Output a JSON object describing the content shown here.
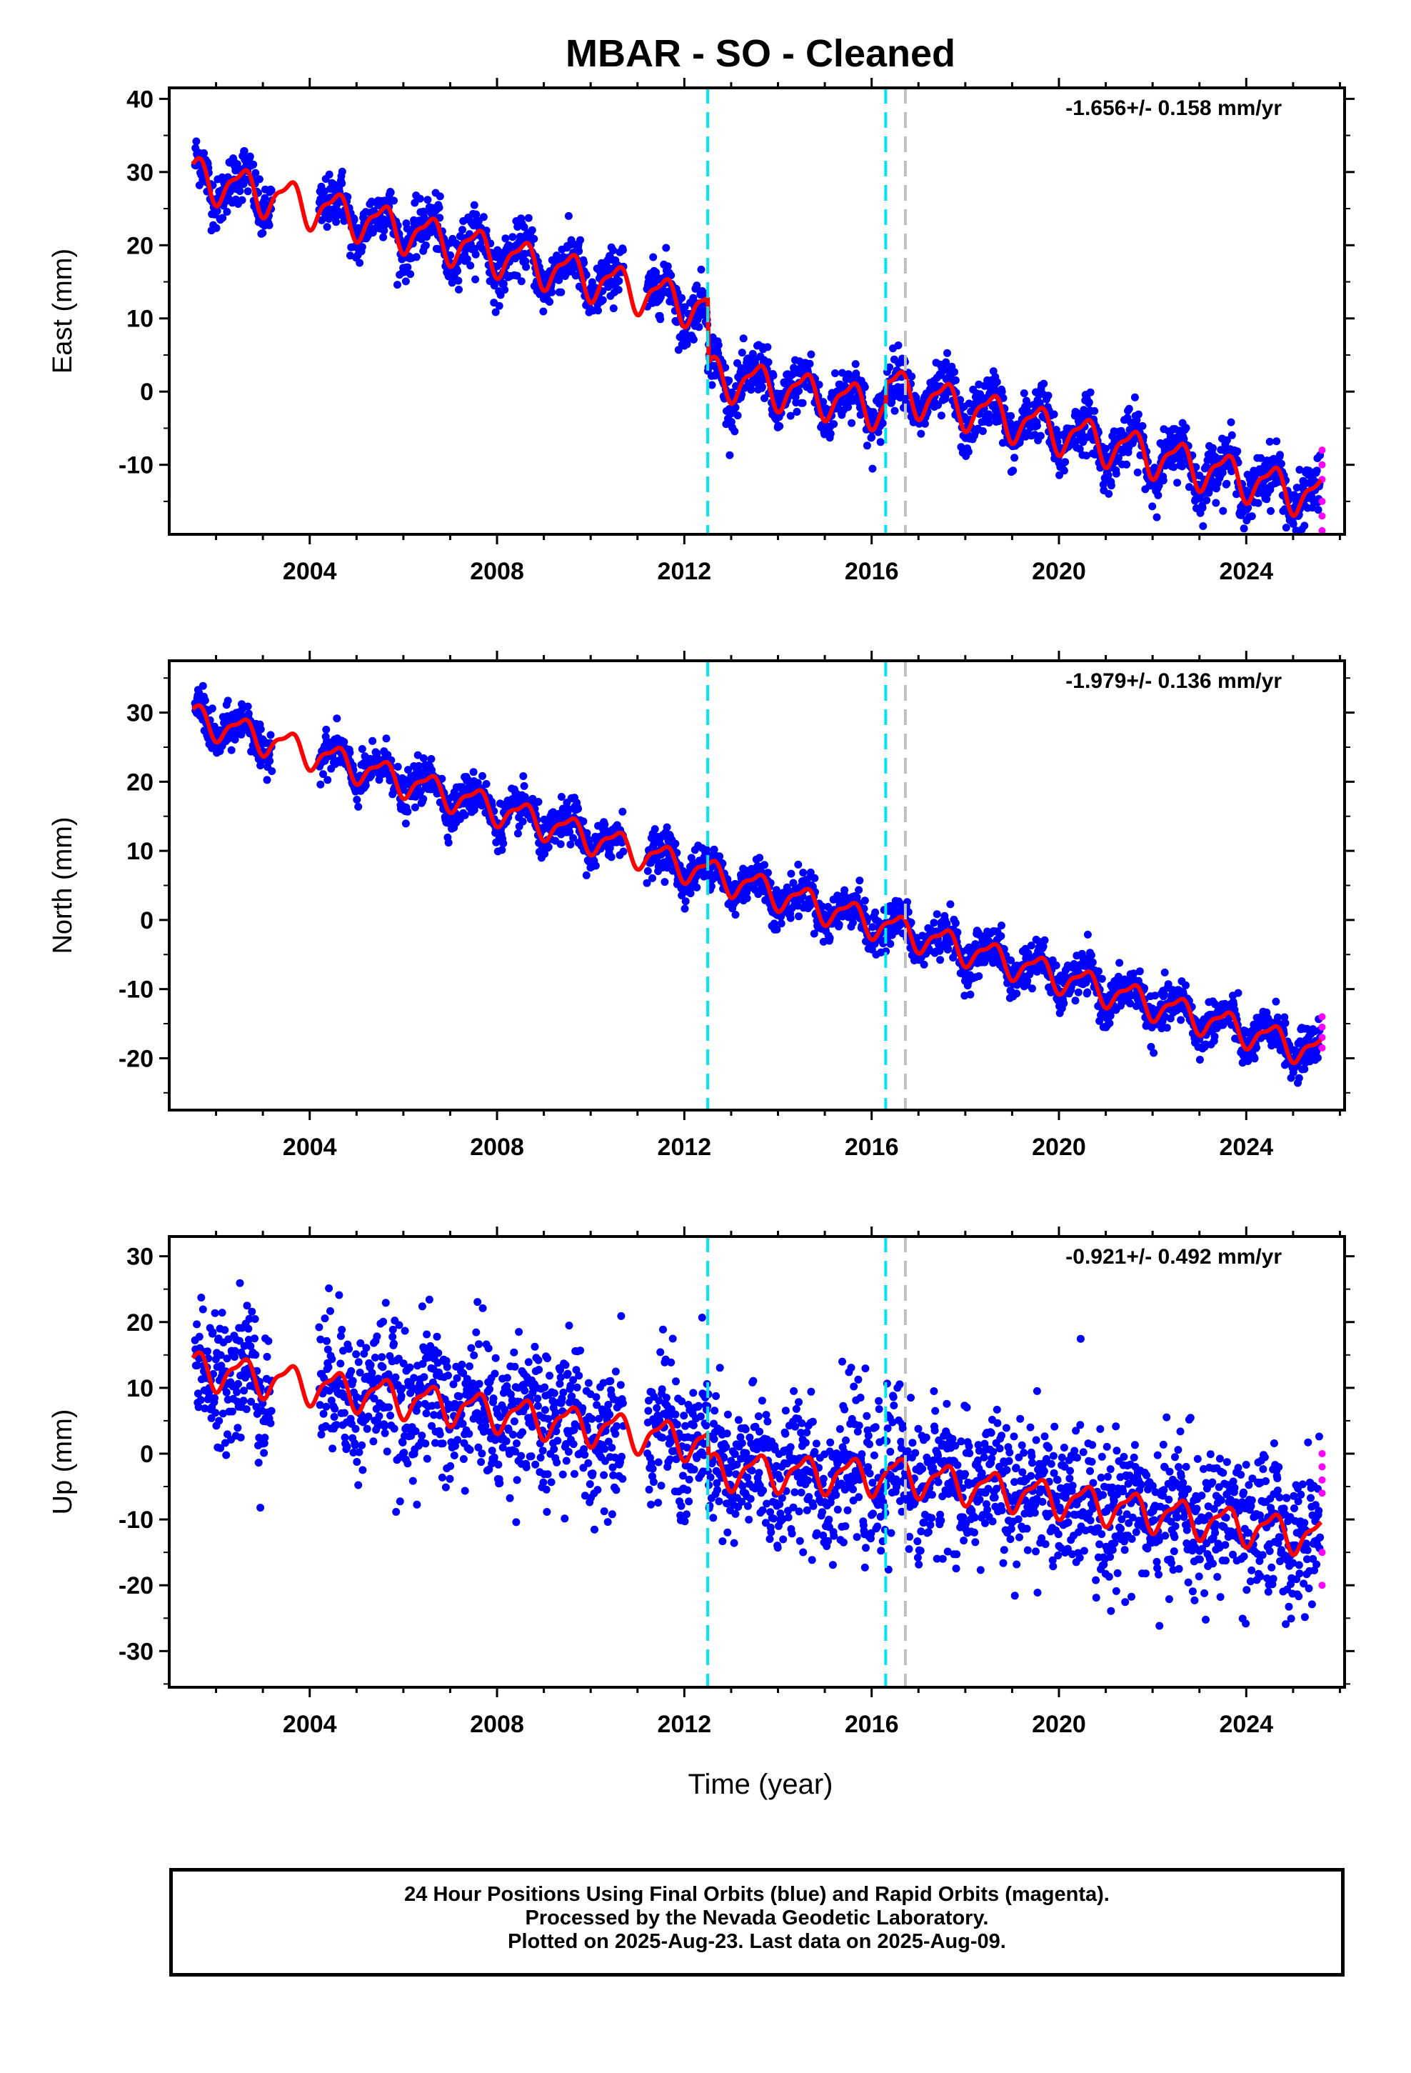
{
  "title": "MBAR  - SO - Cleaned",
  "xlabel": "Time (year)",
  "footer": [
    "24 Hour Positions Using Final Orbits (blue) and Rapid Orbits (magenta).",
    "Processed by the Nevada Geodetic Laboratory.",
    "Plotted on 2025-Aug-23. Last data on 2025-Aug-09."
  ],
  "colors": {
    "final_orbits": "#0000ff",
    "rapid_orbits": "#ff00ff",
    "model": "#ff0000",
    "equipment_change": "#00e5ee",
    "other_event": "#c0c0c0"
  },
  "chart_data": [
    {
      "type": "scatter",
      "ylabel": "East (mm)",
      "rate": "-1.656+/- 0.158 mm/yr",
      "xlim": [
        2001.0,
        2026.1
      ],
      "ylim": [
        -19.5,
        41.5
      ],
      "xticks": [
        2004,
        2008,
        2012,
        2016,
        2020,
        2024
      ],
      "yticks": [
        -10,
        0,
        10,
        20,
        30,
        40
      ],
      "vlines": [
        {
          "x": 2012.5,
          "color": "cyan"
        },
        {
          "x": 2016.3,
          "color": "cyan"
        },
        {
          "x": 2016.72,
          "color": "gray"
        }
      ],
      "model": {
        "segments": [
          {
            "x0": 2001.5,
            "x1": 2012.5,
            "y0": 29.5,
            "y1": 11.3
          },
          {
            "x0": 2012.5,
            "x1": 2016.3,
            "y0": 2.3,
            "y1": -2.3
          },
          {
            "x0": 2016.3,
            "x1": 2025.6,
            "y0": 0.6,
            "y1": -14.6
          }
        ],
        "amplitude": 2.6
      },
      "gaps": [
        [
          2003.2,
          2004.2
        ],
        [
          2010.7,
          2011.2
        ]
      ],
      "scatter": 1.8,
      "rapid": {
        "x": 2025.62,
        "values": [
          -8,
          -10,
          -12,
          -15,
          -17,
          -19
        ]
      }
    },
    {
      "type": "scatter",
      "ylabel": "North (mm)",
      "rate": "-1.979+/- 0.136 mm/yr",
      "xlim": [
        2001.0,
        2026.1
      ],
      "ylim": [
        -27.5,
        37.5
      ],
      "xticks": [
        2004,
        2008,
        2012,
        2016,
        2020,
        2024
      ],
      "yticks": [
        -20,
        -10,
        0,
        10,
        20,
        30
      ],
      "vlines": [
        {
          "x": 2012.5,
          "color": "cyan"
        },
        {
          "x": 2016.3,
          "color": "cyan"
        },
        {
          "x": 2016.72,
          "color": "gray"
        }
      ],
      "model": {
        "segments": [
          {
            "x0": 2001.5,
            "x1": 2012.5,
            "y0": 29.3,
            "y1": 6.8
          },
          {
            "x0": 2012.5,
            "x1": 2016.3,
            "y0": 6.8,
            "y1": -0.9
          },
          {
            "x0": 2016.3,
            "x1": 2025.6,
            "y0": -0.9,
            "y1": -19.3
          }
        ],
        "amplitude": 2.0
      },
      "gaps": [
        [
          2003.2,
          2004.2
        ],
        [
          2010.7,
          2011.2
        ]
      ],
      "scatter": 1.5,
      "rapid": {
        "x": 2025.62,
        "values": [
          -14,
          -15.5,
          -17,
          -18.5
        ]
      }
    },
    {
      "type": "scatter",
      "ylabel": "Up (mm)",
      "rate": "-0.921+/- 0.492 mm/yr",
      "xlim": [
        2001.0,
        2026.1
      ],
      "ylim": [
        -35.5,
        33.0
      ],
      "xticks": [
        2004,
        2008,
        2012,
        2016,
        2020,
        2024
      ],
      "yticks": [
        -30,
        -20,
        -10,
        0,
        10,
        20,
        30
      ],
      "vlines": [
        {
          "x": 2012.5,
          "color": "cyan"
        },
        {
          "x": 2016.3,
          "color": "cyan"
        },
        {
          "x": 2016.72,
          "color": "gray"
        }
      ],
      "model": {
        "segments": [
          {
            "x0": 2001.5,
            "x1": 2012.5,
            "y0": 13.0,
            "y1": 1.5
          },
          {
            "x0": 2012.5,
            "x1": 2016.3,
            "y0": -2.5,
            "y1": -3.5
          },
          {
            "x0": 2016.3,
            "x1": 2025.6,
            "y0": -3.0,
            "y1": -12.8
          }
        ],
        "amplitude": 2.5
      },
      "gaps": [
        [
          2003.2,
          2004.2
        ],
        [
          2010.7,
          2011.2
        ]
      ],
      "scatter": 5.5,
      "rapid": {
        "x": 2025.62,
        "values": [
          0,
          -2,
          -4,
          -6,
          -15,
          -20
        ]
      }
    }
  ]
}
